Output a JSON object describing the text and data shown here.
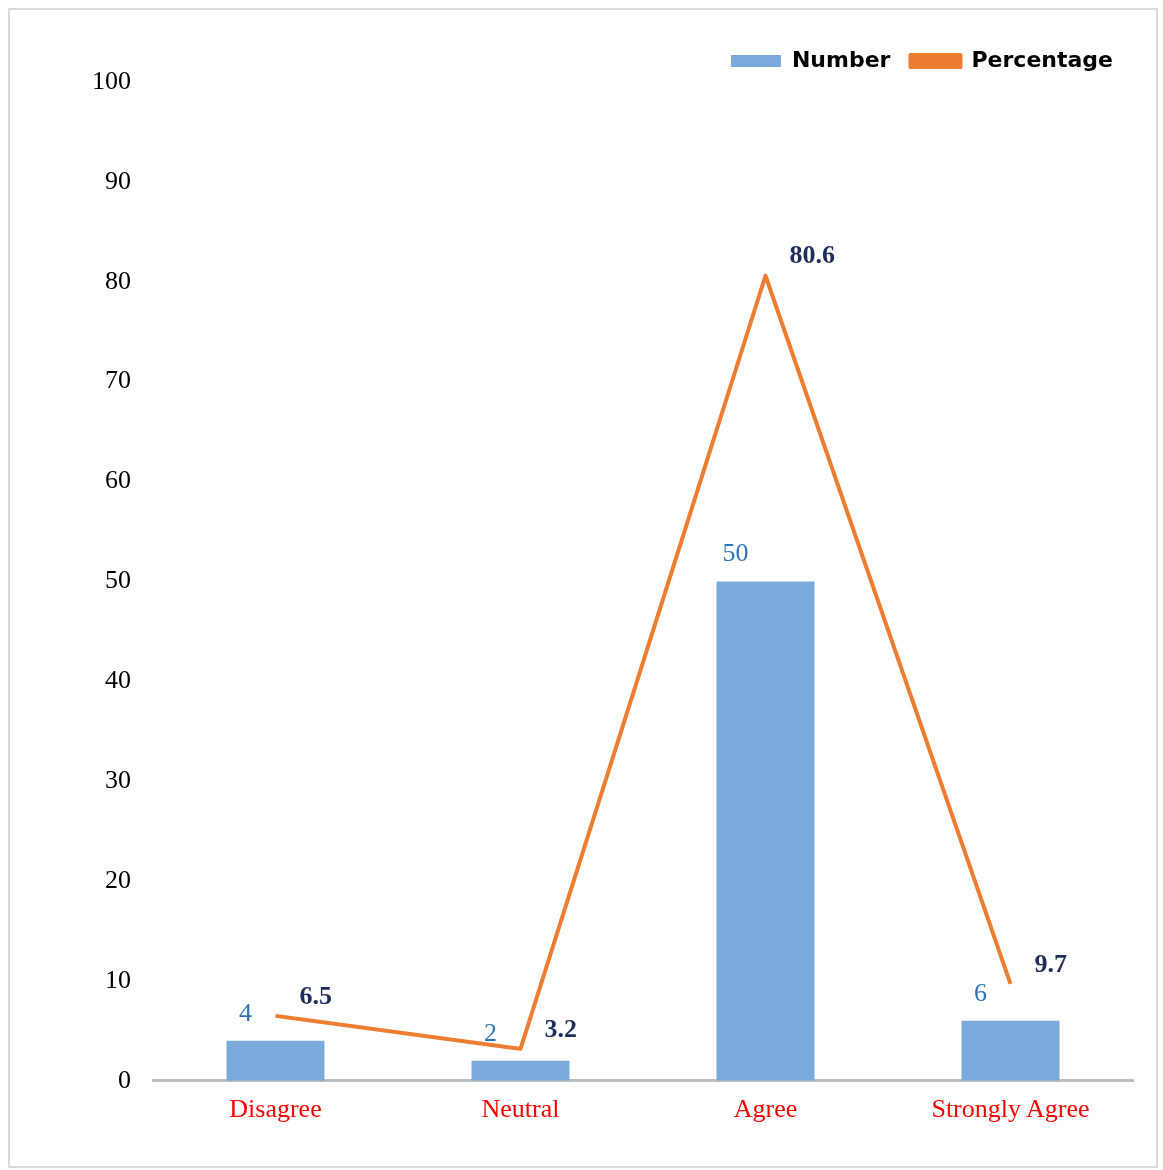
{
  "chart_data": {
    "type": "bar",
    "categories": [
      "Disagree",
      "Neutral",
      "Agree",
      "Strongly Agree"
    ],
    "series": [
      {
        "name": "Number",
        "color": "#7aa9dc",
        "values": [
          4,
          2,
          50,
          6
        ]
      },
      {
        "name": "Percentage",
        "type": "line",
        "color": "#ed7d31",
        "values": [
          6.5,
          3.2,
          80.6,
          9.7
        ]
      }
    ],
    "ylim": [
      0,
      100
    ],
    "yticks": [
      0,
      10,
      20,
      30,
      40,
      50,
      60,
      70,
      80,
      90,
      100
    ],
    "grid": false,
    "legend": "top right",
    "data_labels": true,
    "marker": "none",
    "line_style": "solid"
  }
}
